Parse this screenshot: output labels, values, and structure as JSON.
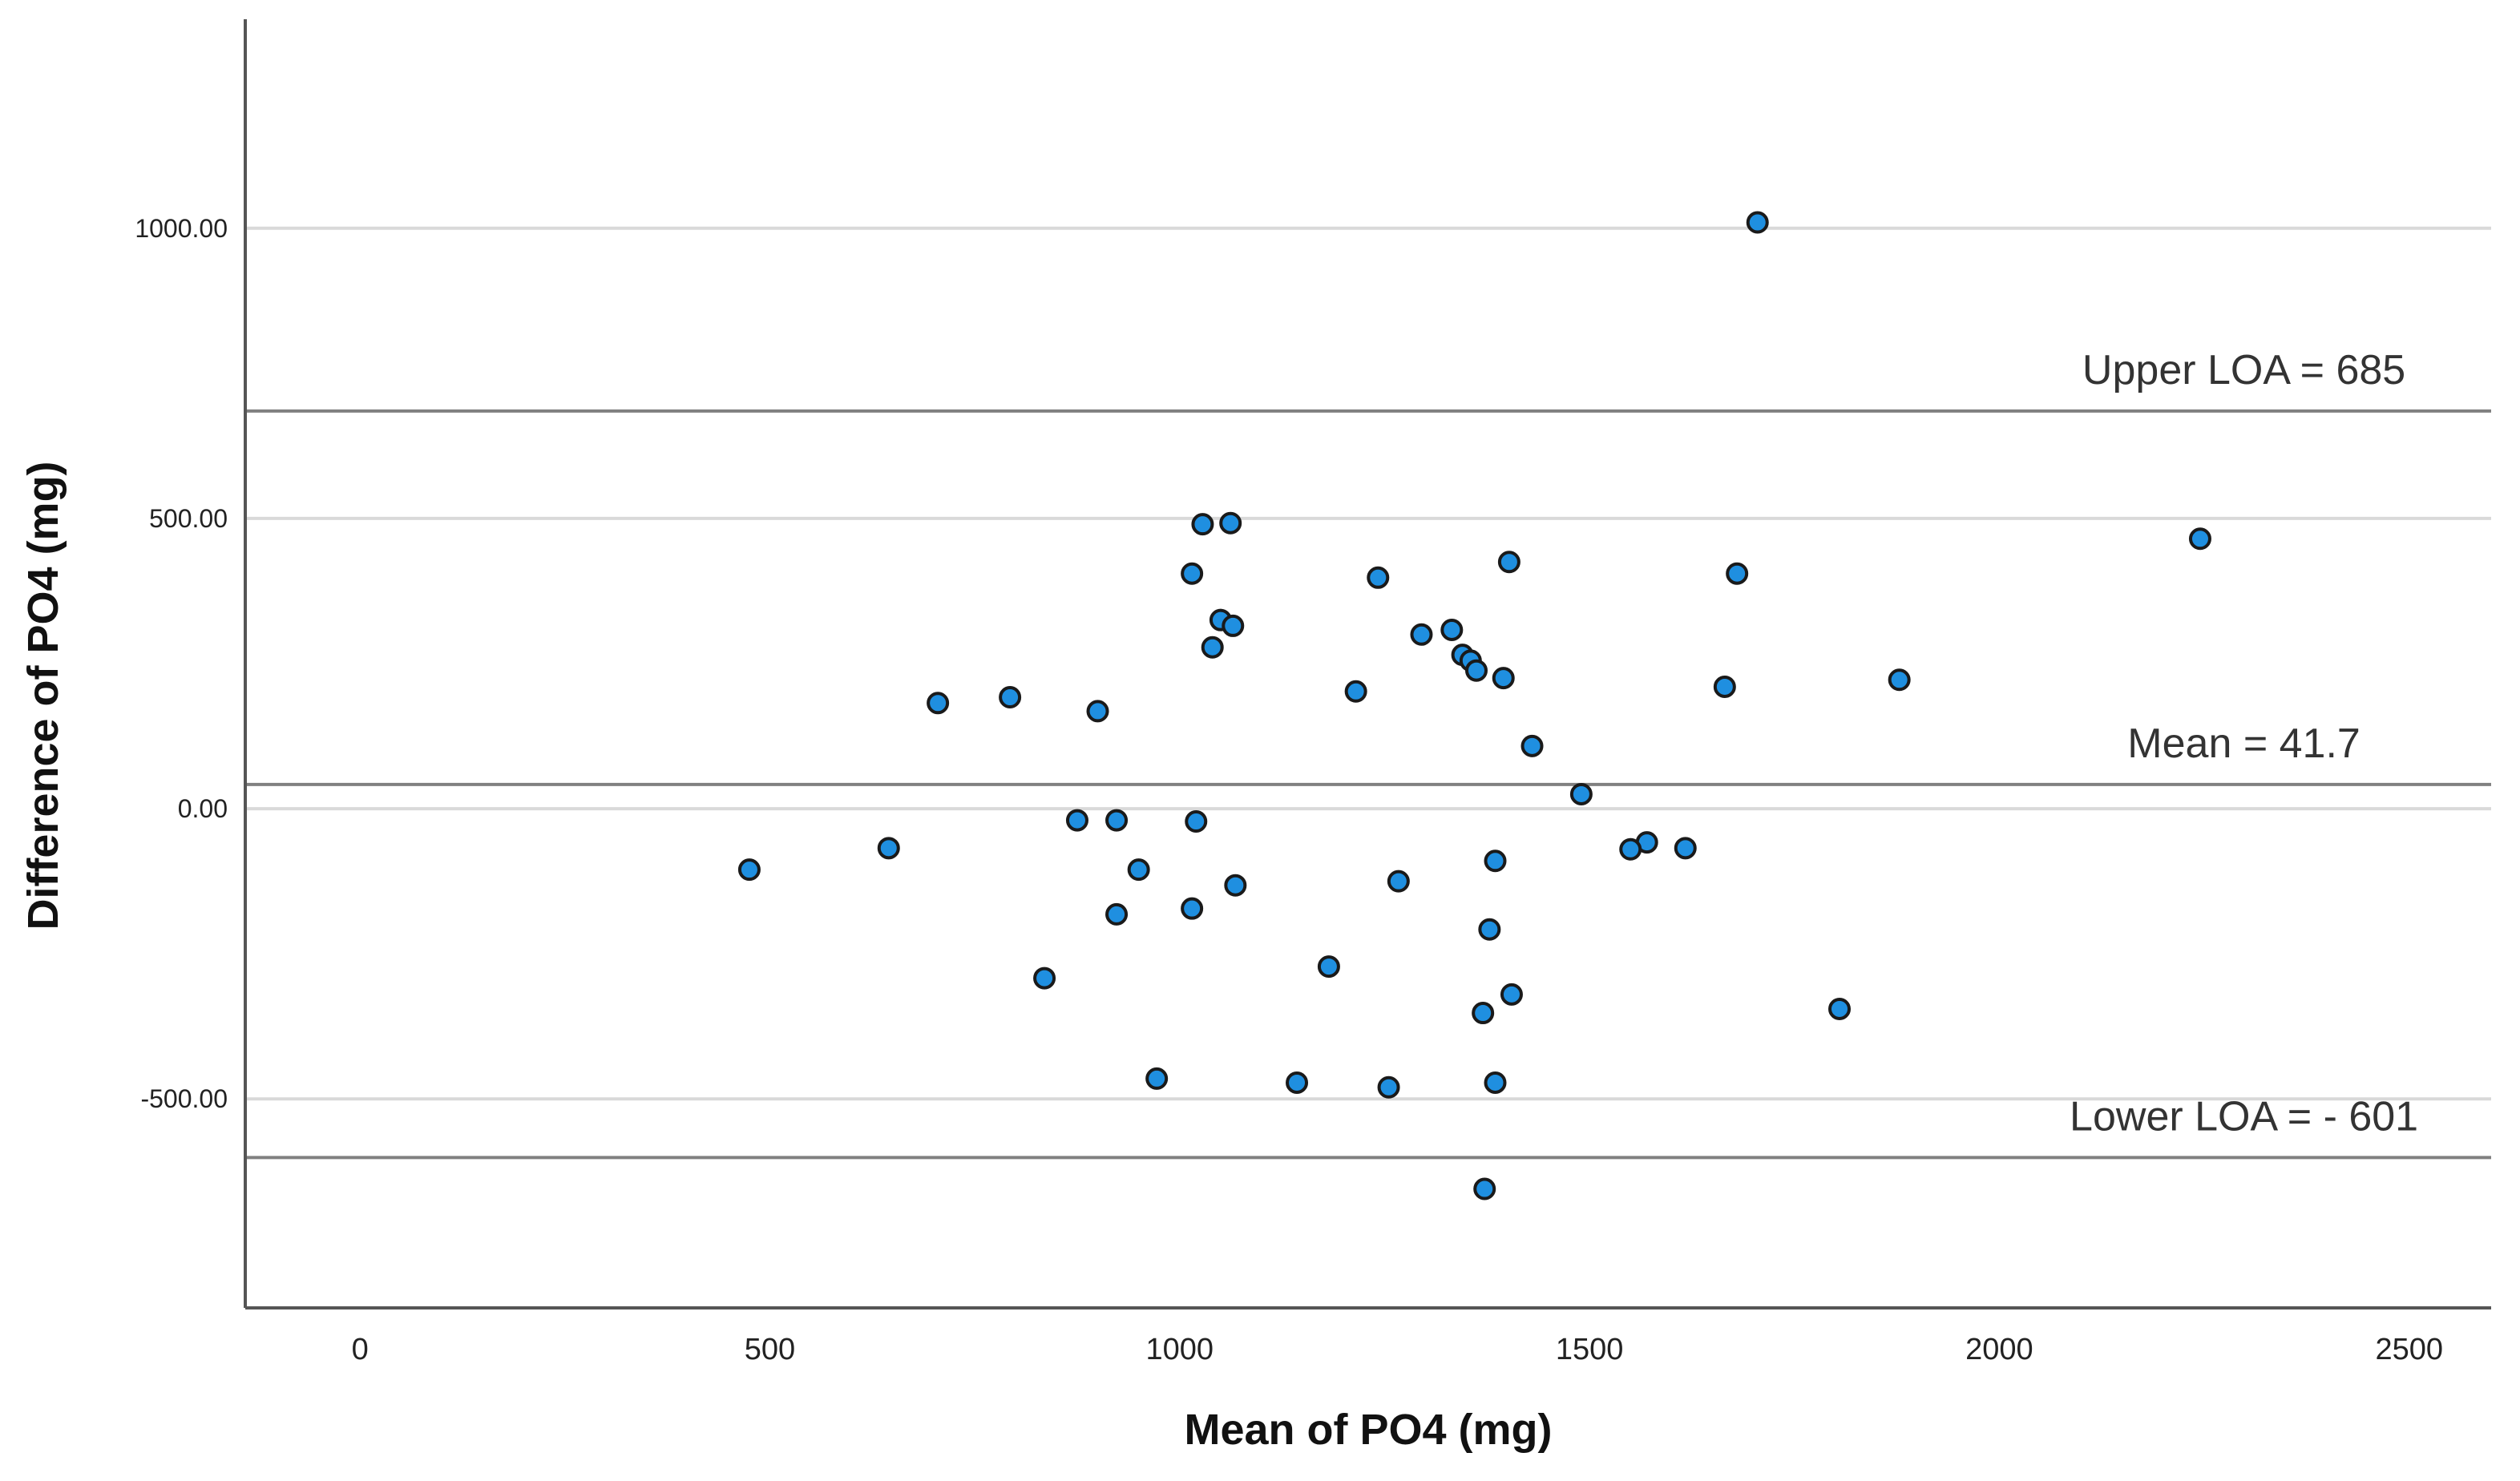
{
  "chart_data": {
    "type": "scatter",
    "xlabel": "Mean of PO4 (mg)",
    "ylabel": "Difference of PO4 (mg)",
    "xlim": [
      -140,
      2600
    ],
    "ylim": [
      -860,
      1360
    ],
    "x_ticks": [
      0,
      500,
      1000,
      1500,
      2000,
      2500
    ],
    "x_tick_labels": [
      "0",
      "500",
      "1000",
      "1500",
      "2000",
      "2500"
    ],
    "y_ticks": [
      -500,
      0,
      500,
      1000
    ],
    "y_tick_labels": [
      "-500.00",
      "0.00",
      "500.00",
      "1000.00"
    ],
    "grid": "horizontal",
    "reference_lines": [
      {
        "value": 685,
        "label": "Upper LOA = 685",
        "anchor": 2095
      },
      {
        "value": 41.7,
        "label": "Mean = 41.7",
        "anchor": 2095
      },
      {
        "value": -601,
        "label": "Lower LOA = - 601",
        "anchor": 2095
      }
    ],
    "marker": {
      "fill": "#1f8fe0",
      "stroke": "#1a1a1a"
    },
    "line_color": "#808080",
    "grid_color": "#d9d9d9",
    "axis_color": "#555555",
    "points": [
      {
        "x": 1705,
        "y": 1010
      },
      {
        "x": 2245,
        "y": 465
      },
      {
        "x": 1028,
        "y": 490
      },
      {
        "x": 1062,
        "y": 492
      },
      {
        "x": 1015,
        "y": 405
      },
      {
        "x": 1242,
        "y": 398
      },
      {
        "x": 1402,
        "y": 425
      },
      {
        "x": 1680,
        "y": 405
      },
      {
        "x": 1050,
        "y": 325
      },
      {
        "x": 1065,
        "y": 315
      },
      {
        "x": 1332,
        "y": 308
      },
      {
        "x": 1295,
        "y": 300
      },
      {
        "x": 1040,
        "y": 278
      },
      {
        "x": 1345,
        "y": 265
      },
      {
        "x": 1355,
        "y": 255
      },
      {
        "x": 1362,
        "y": 238
      },
      {
        "x": 1395,
        "y": 225
      },
      {
        "x": 1878,
        "y": 222
      },
      {
        "x": 1665,
        "y": 210
      },
      {
        "x": 1215,
        "y": 202
      },
      {
        "x": 705,
        "y": 182
      },
      {
        "x": 793,
        "y": 192
      },
      {
        "x": 900,
        "y": 168
      },
      {
        "x": 1430,
        "y": 108
      },
      {
        "x": 1490,
        "y": 25
      },
      {
        "x": 875,
        "y": -20
      },
      {
        "x": 923,
        "y": -20
      },
      {
        "x": 1020,
        "y": -22
      },
      {
        "x": 1570,
        "y": -58
      },
      {
        "x": 1550,
        "y": -70
      },
      {
        "x": 1617,
        "y": -68
      },
      {
        "x": 645,
        "y": -68
      },
      {
        "x": 475,
        "y": -105
      },
      {
        "x": 950,
        "y": -105
      },
      {
        "x": 1385,
        "y": -90
      },
      {
        "x": 1267,
        "y": -125
      },
      {
        "x": 1068,
        "y": -132
      },
      {
        "x": 1015,
        "y": -172
      },
      {
        "x": 923,
        "y": -182
      },
      {
        "x": 1378,
        "y": -208
      },
      {
        "x": 1182,
        "y": -272
      },
      {
        "x": 835,
        "y": -292
      },
      {
        "x": 1405,
        "y": -320
      },
      {
        "x": 1370,
        "y": -352
      },
      {
        "x": 1805,
        "y": -345
      },
      {
        "x": 972,
        "y": -465
      },
      {
        "x": 1143,
        "y": -472
      },
      {
        "x": 1385,
        "y": -472
      },
      {
        "x": 1255,
        "y": -480
      },
      {
        "x": 1372,
        "y": -655
      }
    ]
  }
}
